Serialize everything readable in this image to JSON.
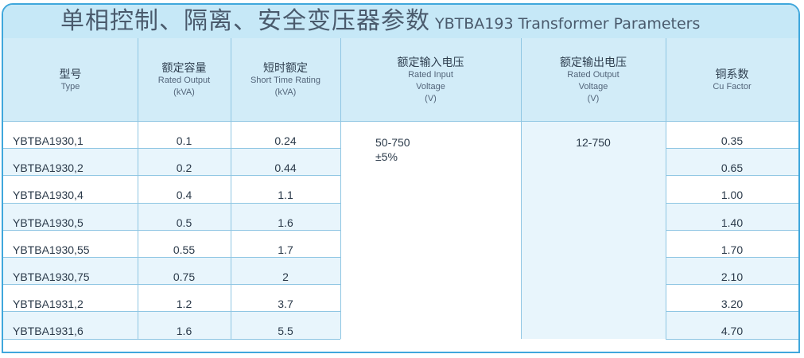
{
  "title": {
    "cn": "单相控制、隔离、安全变压器参数",
    "en": "YBTBA193 Transformer Parameters"
  },
  "headers": [
    {
      "cn": "型号",
      "en": [
        "Type"
      ]
    },
    {
      "cn": "额定容量",
      "en": [
        "Rated Output",
        "(kVA)"
      ]
    },
    {
      "cn": "短时额定",
      "en": [
        "Short Time Rating",
        "(kVA)"
      ]
    },
    {
      "cn": "额定输入电压",
      "en": [
        "Rated Input",
        "Voltage",
        "(V)"
      ]
    },
    {
      "cn": "额定输出电压",
      "en": [
        "Rated Output",
        "Voltage",
        "(V)"
      ]
    },
    {
      "cn": "铜系数",
      "en": [
        "Cu Factor"
      ]
    }
  ],
  "rows": [
    {
      "type": "YBTBA1930,1",
      "rated": "0.1",
      "short": "0.24",
      "cu": "0.35"
    },
    {
      "type": "YBTBA1930,2",
      "rated": "0.2",
      "short": "0.44",
      "cu": "0.65"
    },
    {
      "type": "YBTBA1930,4",
      "rated": "0.4",
      "short": "1.1",
      "cu": "1.00"
    },
    {
      "type": "YBTBA1930,5",
      "rated": "0.5",
      "short": "1.6",
      "cu": "1.40"
    },
    {
      "type": "YBTBA1930,55",
      "rated": "0.55",
      "short": "1.7",
      "cu": "1.70"
    },
    {
      "type": "YBTBA1930,75",
      "rated": "0.75",
      "short": "2",
      "cu": "2.10"
    },
    {
      "type": "YBTBA1931,2",
      "rated": "1.2",
      "short": "3.7",
      "cu": "3.20"
    },
    {
      "type": "YBTBA1931,6",
      "rated": "1.6",
      "short": "5.5",
      "cu": "4.70"
    }
  ],
  "input_voltage": {
    "range": "50-750",
    "tolerance": "±5%"
  },
  "output_voltage": "12-750",
  "colors": {
    "border": "#3fa7dc",
    "title_bg": "#c6e8f7",
    "header_bg": "#d2ecf8",
    "stripe": "#e8f5fc",
    "grid": "#8fc6e3"
  }
}
